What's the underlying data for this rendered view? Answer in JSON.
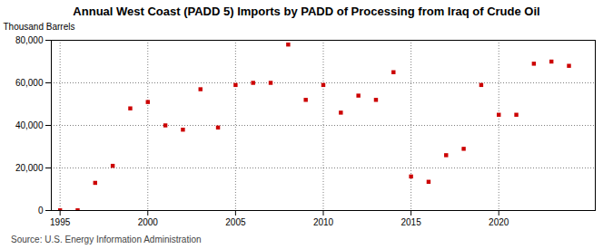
{
  "chart_data": {
    "type": "scatter",
    "title": "Annual West Coast (PADD 5) Imports by PADD of Processing from Iraq of Crude Oil",
    "ylabel": "Thousand Barrels",
    "source": "Source: U.S. Energy Information Administration",
    "color": "#cc0000",
    "marker": "square",
    "x": [
      1995,
      1996,
      1997,
      1998,
      1999,
      2000,
      2001,
      2002,
      2003,
      2004,
      2005,
      2006,
      2007,
      2008,
      2009,
      2010,
      2011,
      2012,
      2013,
      2014,
      2015,
      2016,
      2017,
      2018,
      2019,
      2020,
      2021,
      2022,
      2023,
      2024
    ],
    "values": [
      100,
      100,
      13000,
      21000,
      48000,
      51000,
      40000,
      38000,
      57000,
      39000,
      59000,
      60000,
      60000,
      78000,
      52000,
      59000,
      46000,
      54000,
      52000,
      65000,
      16000,
      13500,
      26000,
      29000,
      59000,
      45000,
      45000,
      69000,
      70000,
      68000
    ],
    "xlim": [
      1994.5,
      2025.5
    ],
    "xticks": [
      1995,
      2000,
      2005,
      2010,
      2015,
      2020
    ],
    "ylim": [
      0,
      80000
    ],
    "yticks": [
      0,
      {
        "value": 20000,
        "label": "20,000"
      },
      {
        "value": 40000,
        "label": "40,000"
      },
      {
        "value": 60000,
        "label": "60,000"
      },
      {
        "value": 80000,
        "label": "80,000"
      }
    ],
    "grid": true
  }
}
